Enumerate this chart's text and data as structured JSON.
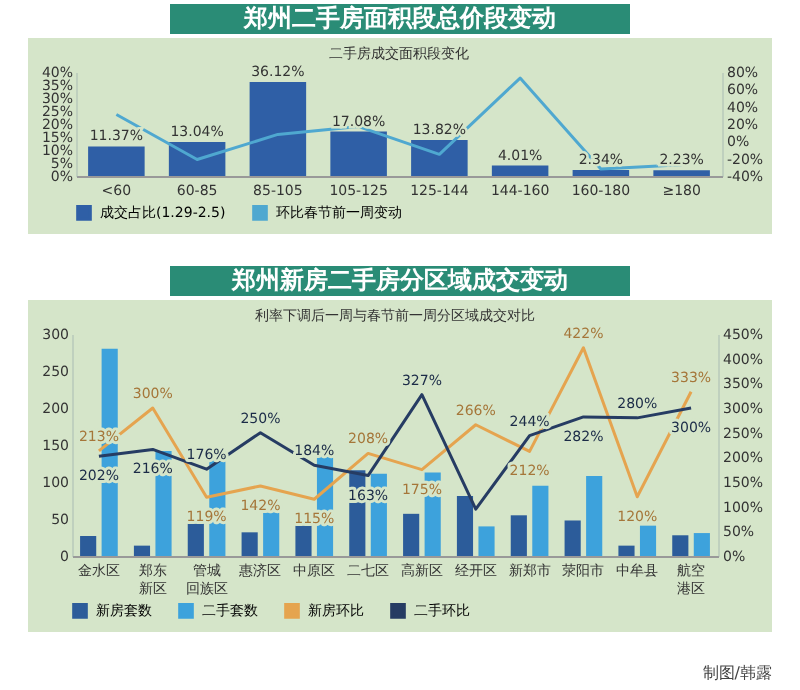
{
  "chart_data": [
    {
      "type": "bar",
      "title": "郑州二手房面积段总价段变动",
      "subtitle": "二手房成交面积段变化",
      "categories": [
        "<60",
        "60-85",
        "85-105",
        "105-125",
        "125-144",
        "144-160",
        "160-180",
        "≥180"
      ],
      "series": [
        {
          "name": "成交占比(1.29-2.5)",
          "color": "#2f5fa6",
          "values": [
            11.37,
            13.04,
            36.12,
            17.08,
            13.82,
            4.01,
            2.34,
            2.23
          ],
          "value_labels": [
            "11.37%",
            "13.04%",
            "36.12%",
            "17.08%",
            "13.82%",
            "4.01%",
            "2.34%",
            "2.23%"
          ]
        },
        {
          "name": "环比春节前一周变动",
          "type": "line",
          "axis": "y2",
          "color": "#4fa8d0",
          "values": [
            31,
            -21,
            8,
            17,
            -15,
            73,
            -32,
            -27
          ]
        }
      ],
      "ylim": [
        0,
        40
      ],
      "yticks": [
        {
          "value": 0,
          "label": "0%"
        },
        {
          "value": 5,
          "label": "5%"
        },
        {
          "value": 10,
          "label": "10%"
        },
        {
          "value": 15,
          "label": "15%"
        },
        {
          "value": 20,
          "label": "20%"
        },
        {
          "value": 25,
          "label": "25%"
        },
        {
          "value": 30,
          "label": "30%"
        },
        {
          "value": 35,
          "label": "35%"
        },
        {
          "value": 40,
          "label": "40%"
        }
      ],
      "y2lim": [
        -40,
        80
      ],
      "y2ticks": [
        {
          "value": -40,
          "label": "-40%"
        },
        {
          "value": -20,
          "label": "-20%"
        },
        {
          "value": 0,
          "label": "0%"
        },
        {
          "value": 20,
          "label": "20%"
        },
        {
          "value": 40,
          "label": "40%"
        },
        {
          "value": 60,
          "label": "60%"
        },
        {
          "value": 80,
          "label": "80%"
        }
      ],
      "legend": "bottom"
    },
    {
      "type": "bar",
      "title": "郑州新房二手房分区域成交变动",
      "subtitle": "利率下调后一周与春节前一周分区域成交对比",
      "categories": [
        "金水区",
        "郑东新区",
        "管城回族区",
        "惠济区",
        "中原区",
        "二七区",
        "高新区",
        "经开区",
        "新郑市",
        "荥阳市",
        "中牟县",
        "航空港区"
      ],
      "series": [
        {
          "name": "新房套数",
          "color": "#2c5c9a",
          "values": [
            27,
            14,
            48,
            32,
            46,
            116,
            57,
            81,
            55,
            48,
            14,
            28
          ]
        },
        {
          "name": "二手套数",
          "color": "#3da2dc",
          "values": [
            280,
            142,
            144,
            59,
            146,
            111,
            113,
            40,
            95,
            108,
            41,
            31
          ]
        },
        {
          "name": "新房环比",
          "type": "line",
          "axis": "y2",
          "color": "#e5a44f",
          "values": [
            213,
            300,
            119,
            142,
            115,
            208,
            175,
            266,
            212,
            422,
            120,
            333
          ],
          "value_labels": [
            "213%",
            "300%",
            "119%",
            "142%",
            "115%",
            "208%",
            "175%",
            "266%",
            "212%",
            "422%",
            "120%",
            "333%"
          ]
        },
        {
          "name": "二手环比",
          "type": "line",
          "axis": "y2",
          "color": "#263c63",
          "values": [
            202,
            216,
            176,
            250,
            184,
            163,
            327,
            95,
            244,
            282,
            280,
            300
          ],
          "value_labels": [
            "202%",
            "216%",
            "176%",
            "250%",
            "184%",
            "163%",
            "327%",
            null,
            "244%",
            "282%",
            "280%",
            "300%"
          ]
        }
      ],
      "ylim": [
        0,
        300
      ],
      "yticks": [
        0,
        50,
        100,
        150,
        200,
        250,
        300
      ],
      "y2lim": [
        0,
        450
      ],
      "y2ticks": [
        {
          "value": 0,
          "label": "0%"
        },
        {
          "value": 50,
          "label": "50%"
        },
        {
          "value": 100,
          "label": "100%"
        },
        {
          "value": 150,
          "label": "150%"
        },
        {
          "value": 200,
          "label": "200%"
        },
        {
          "value": 250,
          "label": "250%"
        },
        {
          "value": 300,
          "label": "300%"
        },
        {
          "value": 350,
          "label": "350%"
        },
        {
          "value": 400,
          "label": "400%"
        },
        {
          "value": 450,
          "label": "450%"
        }
      ],
      "legend": "bottom",
      "annotations": [
        "制图/韩露"
      ]
    }
  ]
}
